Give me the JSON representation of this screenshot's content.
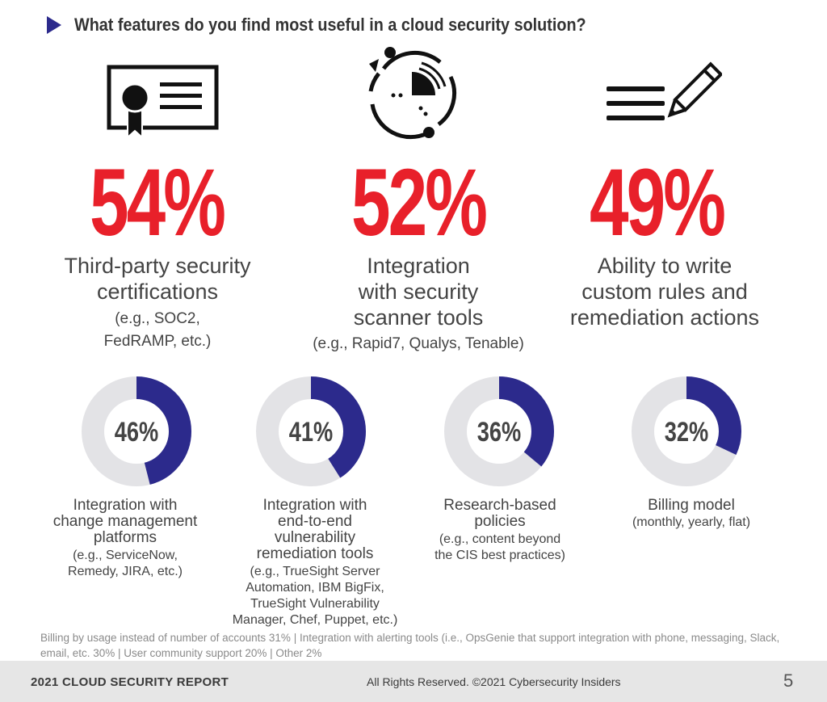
{
  "header": {
    "question": "What features do you find most useful in a cloud security solution?"
  },
  "chart_data": {
    "type": "donut",
    "title": "What features do you find most useful in a cloud security solution?",
    "top_features": [
      {
        "value": 54,
        "display": "54%",
        "label_lines": [
          "Third-party security",
          "certifications"
        ],
        "detail_lines": [
          "(e.g., SOC2,",
          "FedRAMP, etc.)"
        ],
        "icon": "certificate-icon"
      },
      {
        "value": 52,
        "display": "52%",
        "label_lines": [
          "Integration",
          "with security",
          "scanner tools"
        ],
        "detail_lines": [
          "(e.g., Rapid7, Qualys, Tenable)"
        ],
        "icon": "radar-scanner-icon"
      },
      {
        "value": 49,
        "display": "49%",
        "label_lines": [
          "Ability to write",
          "custom rules and",
          "remediation actions"
        ],
        "detail_lines": [],
        "icon": "pencil-list-icon"
      }
    ],
    "donut_features": [
      {
        "value": 46,
        "display": "46%",
        "label_lines": [
          "Integration with",
          "change management",
          "platforms"
        ],
        "detail_lines": [
          "(e.g., ServiceNow,",
          "Remedy, JIRA, etc.)"
        ]
      },
      {
        "value": 41,
        "display": "41%",
        "label_lines": [
          "Integration with",
          "end-to-end",
          "vulnerability",
          "remediation tools"
        ],
        "detail_lines": [
          "(e.g., TrueSight Server",
          "Automation, IBM BigFix,",
          "TrueSight Vulnerability",
          "Manager, Chef, Puppet, etc.)"
        ]
      },
      {
        "value": 36,
        "display": "36%",
        "label_lines": [
          "Research-based",
          "policies"
        ],
        "detail_lines": [
          "(e.g., content beyond",
          "the CIS best practices)"
        ]
      },
      {
        "value": 32,
        "display": "32%",
        "label_lines": [
          "Billing model"
        ],
        "detail_lines": [
          "(monthly, yearly, flat)"
        ]
      }
    ],
    "colors": {
      "highlight": "#e8202a",
      "donut_fill": "#2c2a8c",
      "donut_track": "#e3e3e6"
    }
  },
  "other_responses": "Billing by usage instead of number of accounts 31%  |  Integration with alerting tools (i.e., OpsGenie that support integration with phone, messaging, Slack, email, etc. 30%  |  User community support 20%  |   Other 2%",
  "footer": {
    "report_title": "2021 CLOUD SECURITY REPORT",
    "rights": "All Rights Reserved.  ©2021  Cybersecurity Insiders",
    "page_number": "5"
  }
}
